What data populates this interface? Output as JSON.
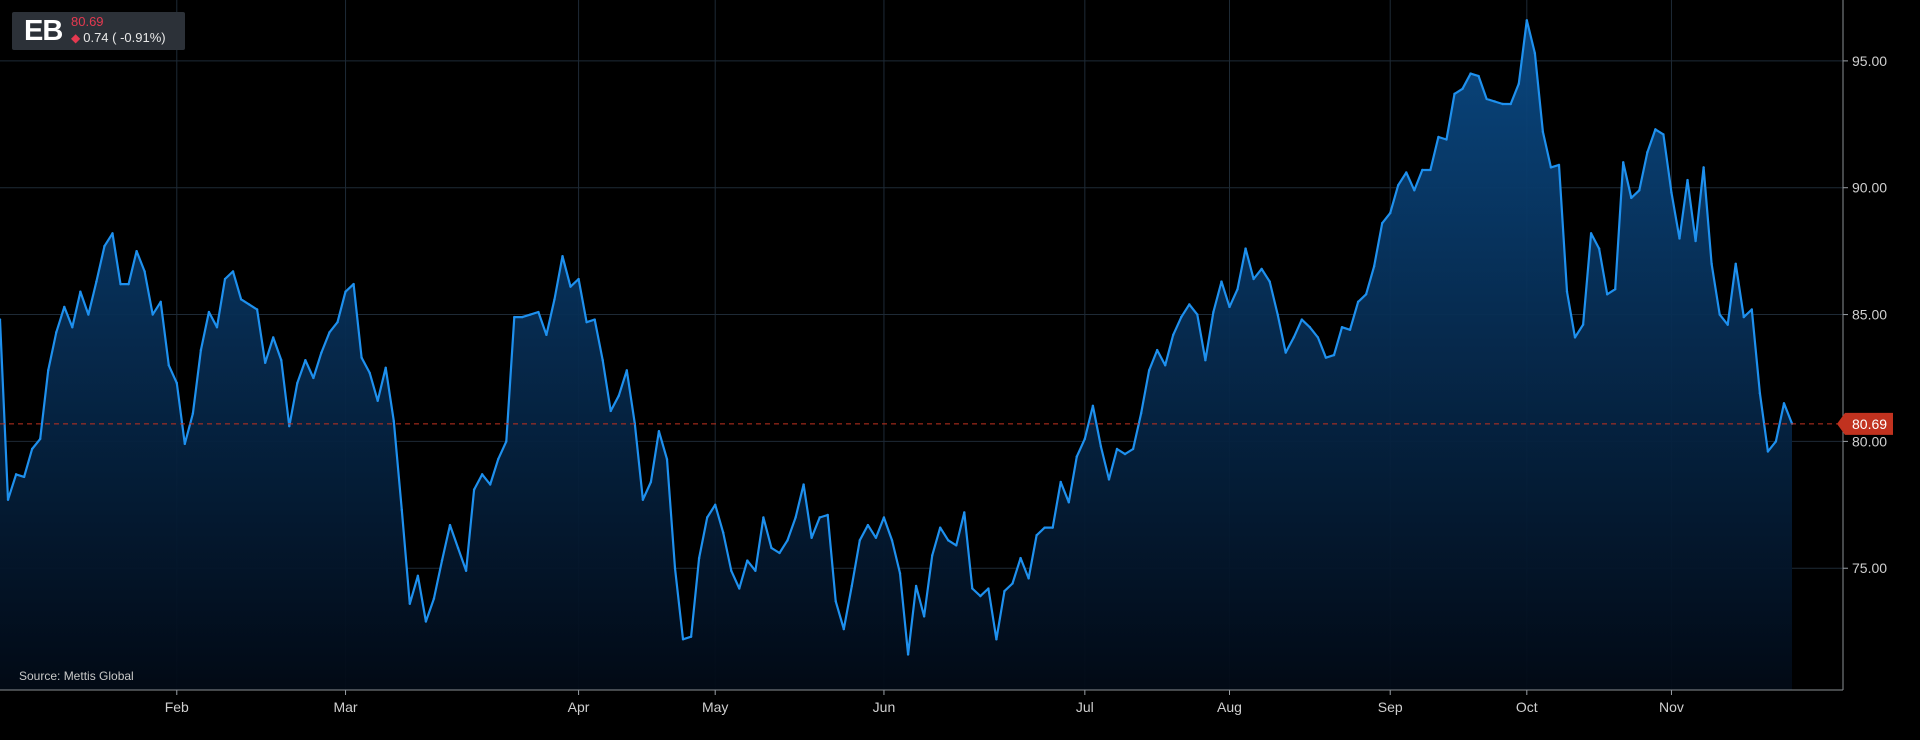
{
  "ticker": {
    "symbol": "EB",
    "price": "80.69",
    "change": "0.74 ( -0.91%)",
    "arrow_icon": "diamond-down-icon"
  },
  "source": "Source: Mettis Global",
  "colors": {
    "line": "#1e90ee",
    "area_top": "#0a4a86",
    "grid": "#1e2a36",
    "price_tag": "#c1321f",
    "down": "#e53950"
  },
  "chart_data": {
    "type": "area",
    "title": "",
    "xlabel": "",
    "ylabel": "",
    "ylim": [
      70.2,
      97.4
    ],
    "yticks": [
      "75.00",
      "80.00",
      "85.00",
      "90.00",
      "95.00"
    ],
    "xticks": [
      "Feb",
      "Mar",
      "Apr",
      "May",
      "Jun",
      "Jul",
      "Aug",
      "Sep",
      "Oct",
      "Nov"
    ],
    "last_price_label": "80.69",
    "last_price": 80.69,
    "grid": true,
    "series": [
      {
        "values": [
          84.8,
          77.7,
          78.7,
          78.6,
          79.7,
          80.1,
          82.8,
          84.3,
          85.3,
          84.5,
          85.9,
          85.0,
          86.3,
          87.7,
          88.2,
          86.2,
          86.2,
          87.5,
          86.7,
          85.0,
          85.5,
          83.0,
          82.3,
          79.9,
          81.1,
          83.6,
          85.1,
          84.5,
          86.4,
          86.7,
          85.6,
          85.4,
          85.2,
          83.1,
          84.1,
          83.2,
          80.6,
          82.3,
          83.2,
          82.5,
          83.5,
          84.3,
          84.7,
          85.9,
          86.2,
          83.3,
          82.7,
          81.6,
          82.9,
          80.8,
          77.3,
          73.6,
          74.7,
          72.9,
          73.8,
          75.3,
          76.7,
          75.8,
          74.9,
          78.1,
          78.7,
          78.3,
          79.3,
          80.0,
          84.9,
          84.9,
          85.0,
          85.1,
          84.2,
          85.6,
          87.3,
          86.1,
          86.4,
          84.7,
          84.8,
          83.2,
          81.2,
          81.8,
          82.8,
          80.7,
          77.7,
          78.4,
          80.4,
          79.3,
          75.0,
          72.2,
          72.3,
          75.4,
          77.0,
          77.5,
          76.4,
          74.9,
          74.2,
          75.3,
          74.9,
          77.0,
          75.8,
          75.6,
          76.1,
          77.0,
          78.3,
          76.2,
          77.0,
          77.1,
          73.7,
          72.6,
          74.3,
          76.1,
          76.7,
          76.2,
          77.0,
          76.1,
          74.8,
          71.6,
          74.3,
          73.1,
          75.5,
          76.6,
          76.1,
          75.9,
          77.2,
          74.2,
          73.9,
          74.2,
          72.2,
          74.1,
          74.4,
          75.4,
          74.6,
          76.3,
          76.6,
          76.6,
          78.4,
          77.6,
          79.4,
          80.1,
          81.4,
          79.8,
          78.5,
          79.7,
          79.5,
          79.7,
          81.1,
          82.8,
          83.6,
          83.0,
          84.2,
          84.9,
          85.4,
          85.0,
          83.2,
          85.1,
          86.3,
          85.3,
          86.0,
          87.6,
          86.4,
          86.8,
          86.3,
          85.0,
          83.5,
          84.1,
          84.8,
          84.5,
          84.1,
          83.3,
          83.4,
          84.5,
          84.4,
          85.5,
          85.8,
          86.9,
          88.6,
          89.0,
          90.1,
          90.6,
          89.9,
          90.7,
          90.7,
          92.0,
          91.9,
          93.7,
          93.9,
          94.5,
          94.4,
          93.5,
          93.4,
          93.3,
          93.3,
          94.1,
          96.6,
          95.3,
          92.2,
          90.8,
          90.9,
          85.9,
          84.1,
          84.6,
          88.2,
          87.6,
          85.8,
          86.0,
          91.0,
          89.6,
          89.9,
          91.4,
          92.3,
          92.1,
          89.8,
          88.0,
          90.3,
          87.9,
          90.8,
          87.0,
          85.0,
          84.6,
          87.0,
          84.9,
          85.2,
          81.9,
          79.6,
          80.0,
          81.5,
          80.7
        ]
      }
    ]
  }
}
